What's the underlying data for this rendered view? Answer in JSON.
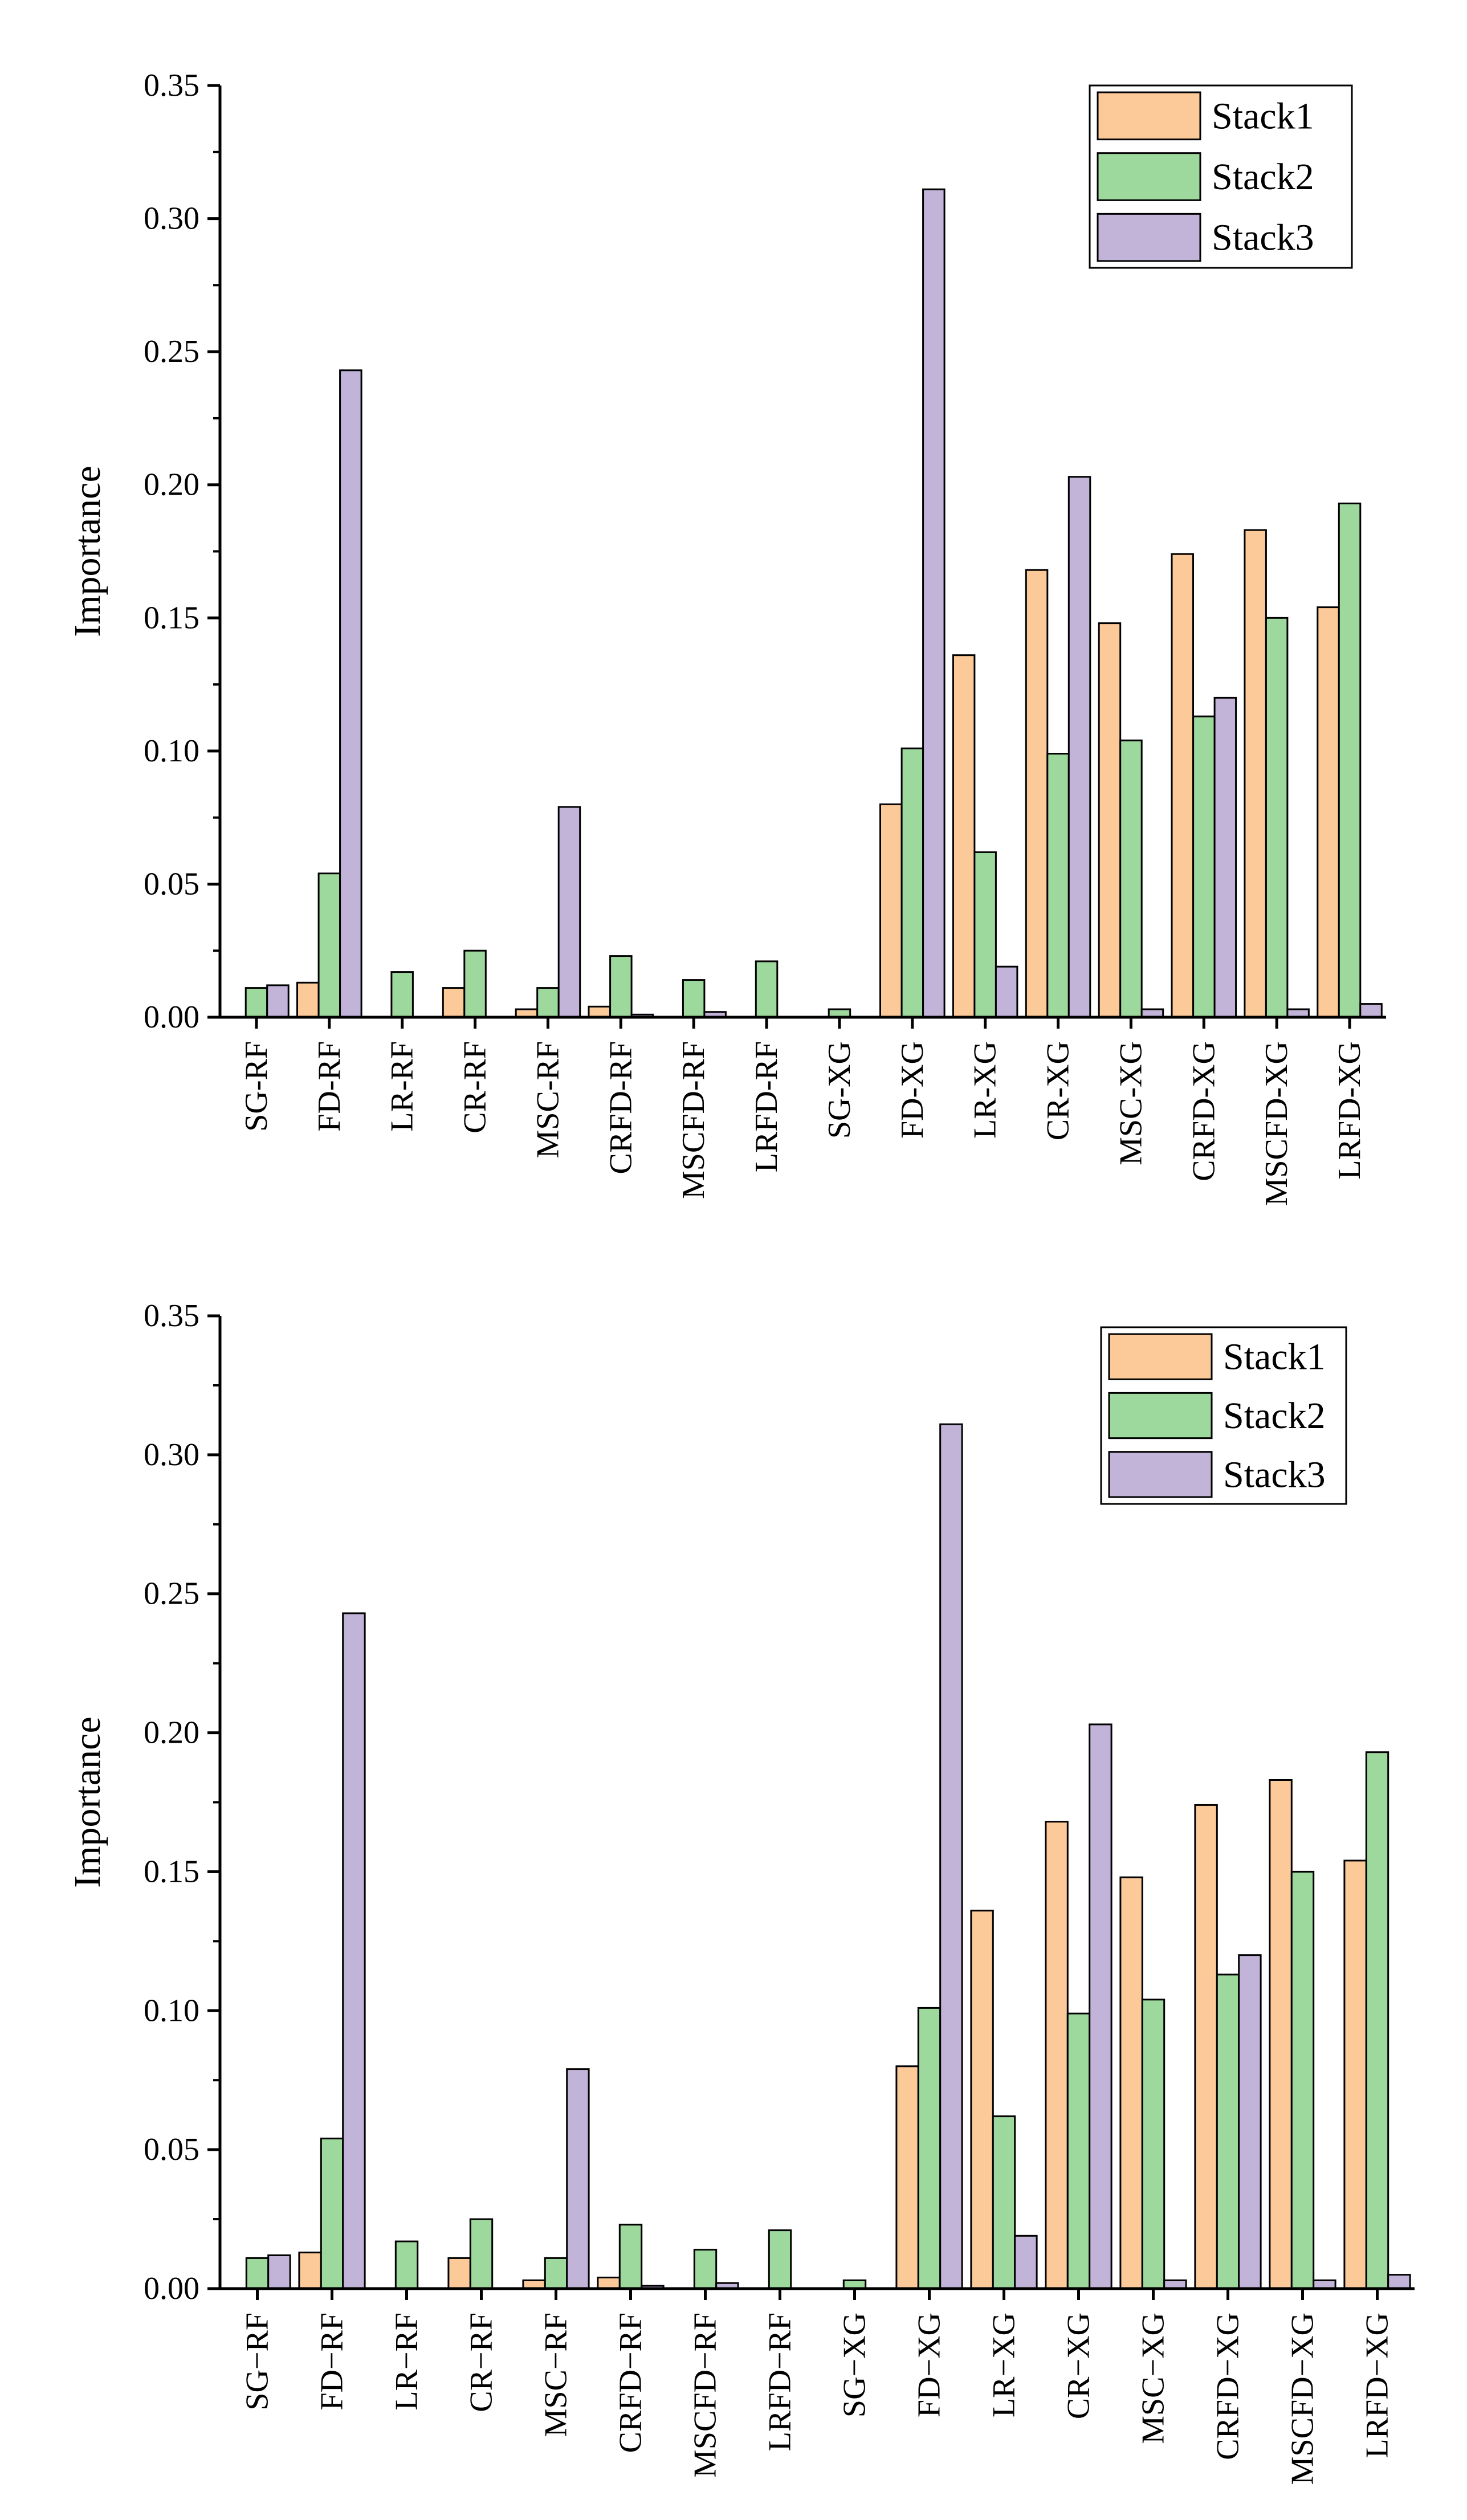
{
  "chart_data": [
    {
      "type": "bar",
      "ylabel": "Importance",
      "ylim": [
        0,
        0.35
      ],
      "yticks": [
        "0.00",
        "0.05",
        "0.10",
        "0.15",
        "0.20",
        "0.25",
        "0.30",
        "0.35"
      ],
      "categories": [
        "SG-RF",
        "FD-RF",
        "LR-RF",
        "CR-RF",
        "MSC-RF",
        "CRFD-RF",
        "MSCFD-RF",
        "LRFD-RF",
        "SG-XG",
        "FD-XG",
        "LR-XG",
        "CR-XG",
        "MSC-XG",
        "CRFD-XG",
        "MSCFD-XG",
        "LRFD-XG"
      ],
      "series": [
        {
          "name": "Stack1",
          "color": "#fcc999",
          "values": [
            0,
            0.013,
            0,
            0.011,
            0.003,
            0.004,
            0,
            0,
            0,
            0.08,
            0.136,
            0.168,
            0.148,
            0.174,
            0.183,
            0.154
          ]
        },
        {
          "name": "Stack2",
          "color": "#9dd99c",
          "values": [
            0.011,
            0.054,
            0.017,
            0.025,
            0.011,
            0.023,
            0.014,
            0.021,
            0.003,
            0.101,
            0.062,
            0.099,
            0.104,
            0.113,
            0.15,
            0.193
          ]
        },
        {
          "name": "Stack3",
          "color": "#c2b3d9",
          "values": [
            0.012,
            0.243,
            0,
            0,
            0.079,
            0.001,
            0.002,
            0,
            0,
            0.311,
            0.019,
            0.203,
            0.003,
            0.12,
            0.003,
            0.005
          ]
        }
      ],
      "legend_position": "top-right",
      "grid": false
    },
    {
      "type": "bar",
      "ylabel": "Importance",
      "ylim": [
        0,
        0.35
      ],
      "yticks": [
        "0.00",
        "0.05",
        "0.10",
        "0.15",
        "0.20",
        "0.25",
        "0.30",
        "0.35"
      ],
      "categories": [
        "SG−RF",
        "FD−RF",
        "LR−RF",
        "CR−RF",
        "MSC−RF",
        "CRFD−RF",
        "MSCFD−RF",
        "LRFD−RF",
        "SG−XG",
        "FD−XG",
        "LR−XG",
        "CR−XG",
        "MSC−XG",
        "CRFD−XG",
        "MSCFD−XG",
        "LRFD−XG"
      ],
      "series": [
        {
          "name": "Stack1",
          "color": "#fcc999",
          "values": [
            0,
            0.013,
            0,
            0.011,
            0.003,
            0.004,
            0,
            0,
            0,
            0.08,
            0.136,
            0.168,
            0.148,
            0.174,
            0.183,
            0.154
          ]
        },
        {
          "name": "Stack2",
          "color": "#9dd99c",
          "values": [
            0.011,
            0.054,
            0.017,
            0.025,
            0.011,
            0.023,
            0.014,
            0.021,
            0.003,
            0.101,
            0.062,
            0.099,
            0.104,
            0.113,
            0.15,
            0.193
          ]
        },
        {
          "name": "Stack3",
          "color": "#c2b3d9",
          "values": [
            0.012,
            0.243,
            0,
            0,
            0.079,
            0.001,
            0.002,
            0,
            0,
            0.311,
            0.019,
            0.203,
            0.003,
            0.12,
            0.003,
            0.005
          ]
        }
      ],
      "legend_position": "top-right",
      "grid": false
    }
  ]
}
